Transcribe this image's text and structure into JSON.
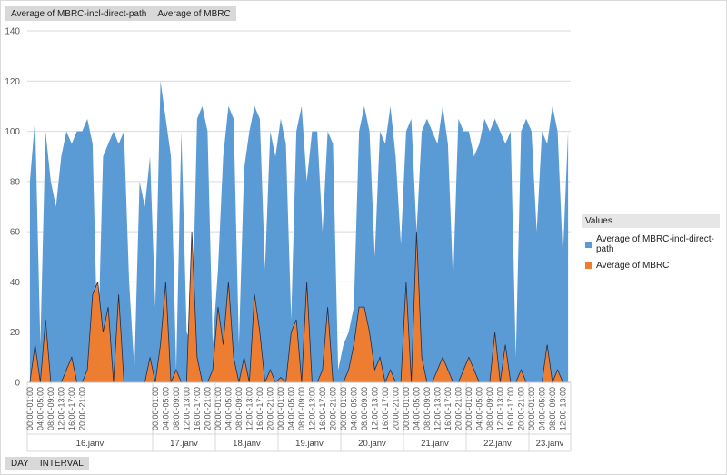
{
  "chart_area": {
    "field_buttons": [
      "Average of MBRC-incl-direct-path",
      "Average of MBRC"
    ],
    "axis_field_buttons": [
      "DAY",
      "INTERVAL"
    ]
  },
  "legend": {
    "title": "Values",
    "items": [
      {
        "label": "Average of MBRC-incl-direct-path",
        "color": "#5b9bd5"
      },
      {
        "label": "Average of MBRC",
        "color": "#ed7d31"
      }
    ]
  },
  "chart_data": {
    "type": "area",
    "title": "",
    "xlabel": "",
    "ylabel": "",
    "ylim": [
      0,
      140
    ],
    "yticks": [
      0,
      20,
      40,
      60,
      80,
      100,
      120,
      140
    ],
    "grid": true,
    "legend_position": "right",
    "x_tick_labels": [
      "00:00-01:00",
      "04:00-05:00",
      "08:00-09:00",
      "12:00-13:00",
      "16:00-17:00",
      "20:00-21:00"
    ],
    "days": [
      {
        "label": "16.janv",
        "intervals": 24
      },
      {
        "label": "17.janv",
        "intervals": 12
      },
      {
        "label": "18.janv",
        "intervals": 12
      },
      {
        "label": "19.janv",
        "intervals": 12
      },
      {
        "label": "20.janv",
        "intervals": 12
      },
      {
        "label": "21.janv",
        "intervals": 12
      },
      {
        "label": "22.janv",
        "intervals": 12
      },
      {
        "label": "23.janv",
        "intervals": 8
      }
    ],
    "series": [
      {
        "name": "Average of MBRC-incl-direct-path",
        "color": "#5b9bd5",
        "values": [
          80,
          105,
          15,
          100,
          80,
          70,
          90,
          100,
          95,
          100,
          100,
          105,
          95,
          10,
          90,
          95,
          100,
          95,
          100,
          40,
          5,
          80,
          70,
          90,
          30,
          120,
          105,
          90,
          5,
          100,
          20,
          15,
          105,
          110,
          100,
          15,
          45,
          90,
          110,
          105,
          15,
          85,
          100,
          110,
          105,
          45,
          100,
          90,
          105,
          95,
          25,
          100,
          110,
          80,
          100,
          100,
          60,
          100,
          95,
          5,
          15,
          20,
          30,
          100,
          110,
          100,
          50,
          100,
          95,
          110,
          90,
          55,
          100,
          105,
          60,
          100,
          105,
          100,
          95,
          110,
          95,
          40,
          105,
          100,
          100,
          90,
          95,
          105,
          100,
          105,
          100,
          95,
          100,
          10,
          100,
          105,
          100,
          60,
          100,
          95,
          110,
          100,
          50,
          100
        ]
      },
      {
        "name": "Average of MBRC",
        "color": "#ed7d31",
        "values": [
          0,
          15,
          0,
          25,
          0,
          0,
          0,
          5,
          10,
          0,
          0,
          5,
          35,
          40,
          20,
          30,
          0,
          35,
          0,
          0,
          0,
          0,
          0,
          10,
          0,
          15,
          40,
          0,
          5,
          0,
          0,
          60,
          10,
          0,
          0,
          5,
          30,
          15,
          40,
          10,
          0,
          10,
          0,
          35,
          20,
          0,
          5,
          0,
          2,
          0,
          20,
          25,
          0,
          40,
          0,
          0,
          5,
          30,
          0,
          0,
          0,
          5,
          15,
          30,
          30,
          20,
          5,
          10,
          0,
          5,
          0,
          0,
          40,
          0,
          60,
          10,
          0,
          0,
          5,
          10,
          5,
          0,
          0,
          5,
          10,
          5,
          0,
          0,
          0,
          20,
          0,
          15,
          0,
          0,
          5,
          0,
          0,
          0,
          0,
          15,
          0,
          5,
          0,
          0
        ]
      }
    ]
  }
}
